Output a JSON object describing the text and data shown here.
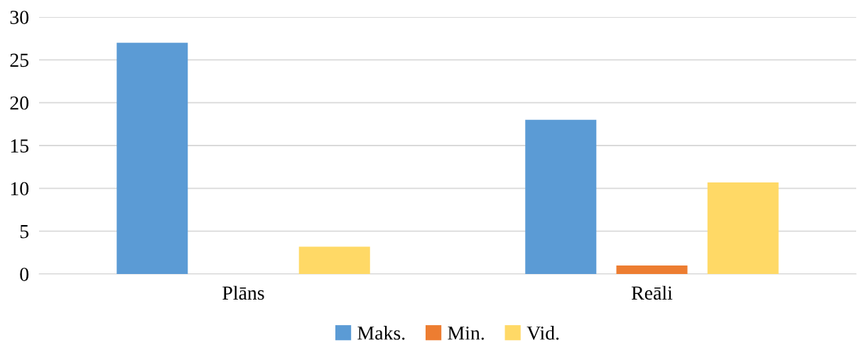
{
  "chart_data": {
    "type": "bar",
    "categories": [
      "Plāns",
      "Reāli"
    ],
    "series": [
      {
        "name": "Maks.",
        "color": "#5b9bd5",
        "values": [
          27,
          18
        ]
      },
      {
        "name": "Min.",
        "color": "#ed7d31",
        "values": [
          0,
          1
        ]
      },
      {
        "name": "Vid.",
        "color": "#ffd966",
        "values": [
          3.2,
          10.7
        ]
      }
    ],
    "ylim": [
      0,
      30
    ],
    "yticks": [
      0,
      5,
      10,
      15,
      20,
      25,
      30
    ],
    "grid": "y",
    "legend": "bottom"
  }
}
